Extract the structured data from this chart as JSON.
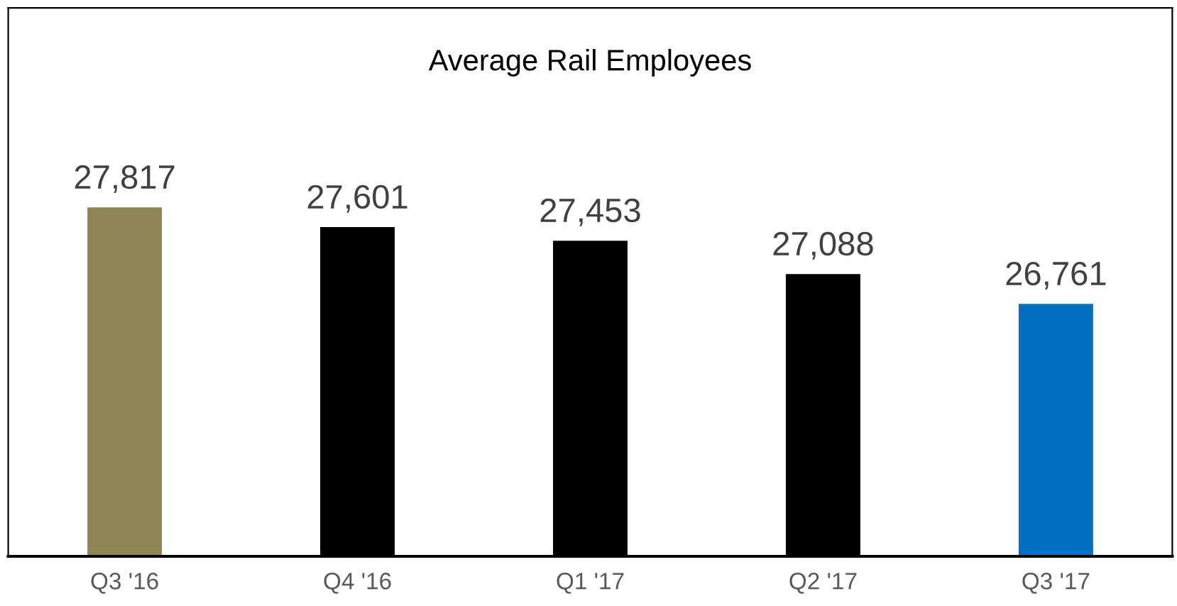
{
  "chart_data": {
    "type": "bar",
    "title": "Average Rail Employees",
    "categories": [
      "Q3 '16",
      "Q4 '16",
      "Q1 '17",
      "Q2 '17",
      "Q3 '17"
    ],
    "values": [
      27817,
      27601,
      27453,
      27088,
      26761
    ],
    "colors": [
      "#8f8653",
      "#000000",
      "#000000",
      "#000000",
      "#0070c0"
    ],
    "ylim": [
      24000,
      30000
    ],
    "tick_labels": "x",
    "value_labels": [
      "27,817",
      "27,601",
      "27,453",
      "27,088",
      "26,761"
    ],
    "grid": false,
    "legend": false
  }
}
